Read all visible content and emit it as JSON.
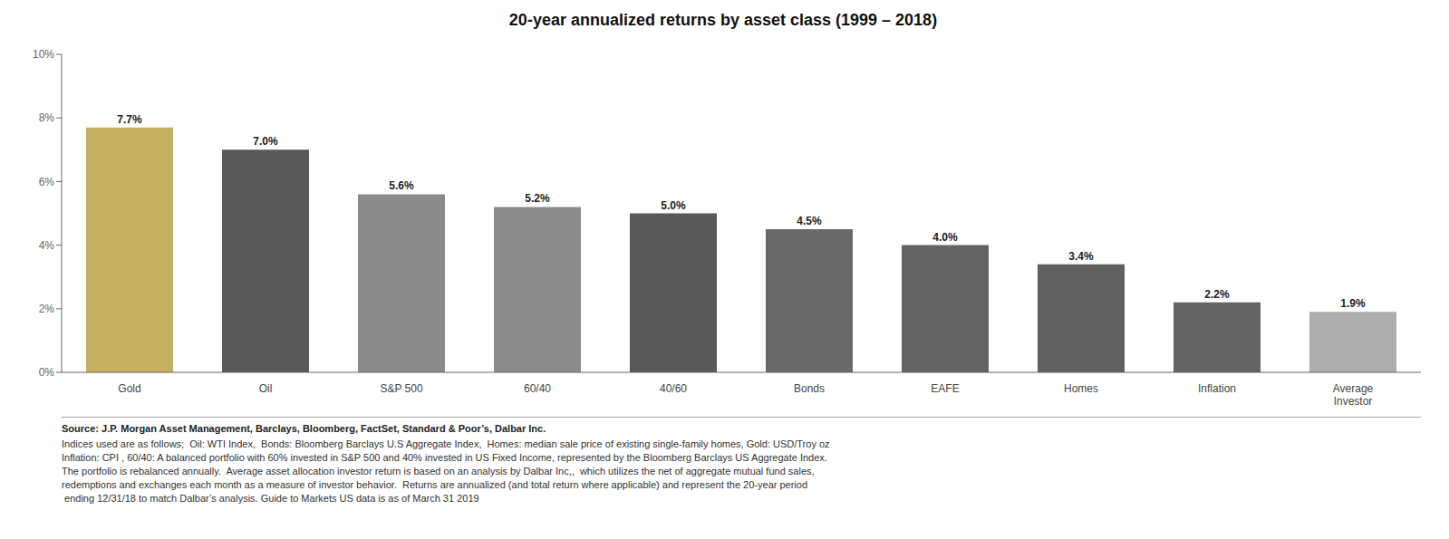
{
  "chart_data": {
    "type": "bar",
    "title": "20-year annualized returns by asset class (1999 – 2018)",
    "categories": [
      "Gold",
      "Oil",
      "S&P 500",
      "60/40",
      "40/60",
      "Bonds",
      "EAFE",
      "Homes",
      "Inflation",
      "Average\nInvestor"
    ],
    "values": [
      7.7,
      7.0,
      5.6,
      5.2,
      5.0,
      4.5,
      4.0,
      3.4,
      2.2,
      1.9
    ],
    "value_labels": [
      "7.7%",
      "7.0%",
      "5.6%",
      "5.2%",
      "5.0%",
      "4.5%",
      "4.0%",
      "3.4%",
      "2.2%",
      "1.9%"
    ],
    "colors": [
      "#C4B060",
      "#595959",
      "#8A8A8A",
      "#8C8C8C",
      "#595959",
      "#696969",
      "#636363",
      "#606060",
      "#636363",
      "#ADADAD"
    ],
    "ylim": [
      0,
      10
    ],
    "yticks": [
      {
        "value": 0,
        "label": "0%"
      },
      {
        "value": 2,
        "label": "2%"
      },
      {
        "value": 4,
        "label": "4%"
      },
      {
        "value": 6,
        "label": "6%"
      },
      {
        "value": 8,
        "label": "8%"
      },
      {
        "value": 10,
        "label": "10%"
      }
    ],
    "grid": false,
    "data_labels": true,
    "annotations": [
      "Source: J.P. Morgan Asset Management, Barclays, Bloomberg, FactSet, Standard & Poor’s, Dalbar Inc.",
      "Indices used are as follows;  Oil: WTI Index,  Bonds: Bloomberg Barclays U.S Aggregate Index,  Homes: median sale price of existing single-family homes, Gold: USD/Troy oz\nInflation: CPI , 60/40: A balanced portfolio with 60% invested in S&P 500 and 40% invested in US Fixed Income, represented by the Bloomberg Barclays US Aggregate Index.\nThe portfolio is rebalanced annually.  Average asset allocation investor return is based on an analysis by Dalbar Inc,,  which utilizes the net of aggregate mutual fund sales,\nredemptions and exchanges each month as a measure of investor behavior.  Returns are annualized (and total return where applicable) and represent the 20-year period\n ending 12/31/18 to match Dalbar’s analysis. Guide to Markets US data is as of March 31 2019"
    ]
  }
}
